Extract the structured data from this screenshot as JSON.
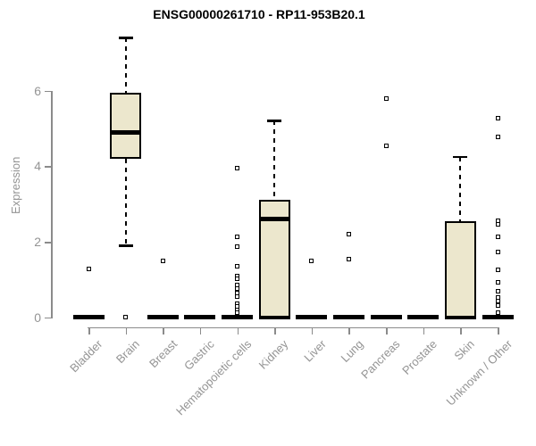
{
  "chart_data": {
    "type": "boxplot",
    "title": "ENSG00000261710 - RP11-953B20.1",
    "ylabel": "Expression",
    "xlabel": "",
    "ylim": [
      0,
      7.5
    ],
    "yticks": [
      0,
      2,
      4,
      6
    ],
    "grid": false,
    "legend": "none",
    "categories": [
      "Bladder",
      "Brain",
      "Breast",
      "Gastric",
      "Hematopoietic cells",
      "Kidney",
      "Liver",
      "Lung",
      "Pancreas",
      "Prostate",
      "Skin",
      "Unknown / Other"
    ],
    "boxes": [
      {
        "category": "Bladder",
        "q1": 0,
        "median": 0,
        "q3": 0,
        "whisker_low": 0,
        "whisker_high": 0,
        "outliers": [
          1.27
        ]
      },
      {
        "category": "Brain",
        "q1": 4.2,
        "median": 4.9,
        "q3": 5.95,
        "whisker_low": 1.9,
        "whisker_high": 7.4,
        "outliers": [
          0
        ]
      },
      {
        "category": "Breast",
        "q1": 0,
        "median": 0,
        "q3": 0,
        "whisker_low": 0,
        "whisker_high": 0,
        "outliers": [
          1.5
        ]
      },
      {
        "category": "Gastric",
        "q1": 0,
        "median": 0,
        "q3": 0,
        "whisker_low": 0,
        "whisker_high": 0,
        "outliers": []
      },
      {
        "category": "Hematopoietic cells",
        "q1": 0,
        "median": 0,
        "q3": 0,
        "whisker_low": 0,
        "whisker_high": 0,
        "outliers": [
          3.95,
          2.14,
          1.87,
          1.36,
          1.1,
          1.02,
          0.85,
          0.76,
          0.65,
          0.55,
          0.37,
          0.28,
          0.2,
          0.12
        ]
      },
      {
        "category": "Kidney",
        "q1": 0,
        "median": 2.6,
        "q3": 3.1,
        "whisker_low": 0,
        "whisker_high": 5.2,
        "outliers": []
      },
      {
        "category": "Liver",
        "q1": 0,
        "median": 0,
        "q3": 0,
        "whisker_low": 0,
        "whisker_high": 0,
        "outliers": [
          1.5
        ]
      },
      {
        "category": "Lung",
        "q1": 0,
        "median": 0,
        "q3": 0,
        "whisker_low": 0,
        "whisker_high": 0,
        "outliers": [
          2.2,
          1.55
        ]
      },
      {
        "category": "Pancreas",
        "q1": 0,
        "median": 0,
        "q3": 0,
        "whisker_low": 0,
        "whisker_high": 0,
        "outliers": [
          5.8,
          4.55
        ]
      },
      {
        "category": "Prostate",
        "q1": 0,
        "median": 0,
        "q3": 0,
        "whisker_low": 0,
        "whisker_high": 0,
        "outliers": []
      },
      {
        "category": "Skin",
        "q1": 0,
        "median": 0,
        "q3": 2.55,
        "whisker_low": 0,
        "whisker_high": 4.25,
        "outliers": []
      },
      {
        "category": "Unknown / Other",
        "q1": 0,
        "median": 0,
        "q3": 0,
        "whisker_low": 0,
        "whisker_high": 0,
        "outliers": [
          5.27,
          4.78,
          2.55,
          2.45,
          2.14,
          1.73,
          1.26,
          0.92,
          0.68,
          0.53,
          0.42,
          0.3,
          0.13
        ]
      }
    ],
    "colors": {
      "box_fill": "#ECE7CD",
      "box_border": "#000000",
      "median": "#000000",
      "whisker": "#000000",
      "axis": "#8B8B8B",
      "tick_label": "#949494",
      "title": "#000000"
    }
  }
}
